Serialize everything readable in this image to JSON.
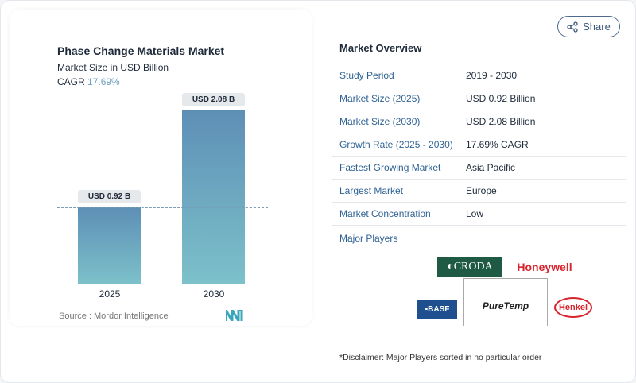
{
  "share_label": "Share",
  "chart": {
    "title": "Phase Change Materials Market",
    "subtitle": "Market Size in USD Billion",
    "cagr_label": "CAGR",
    "cagr_value": "17.69%",
    "source": "Source :  Mordor Intelligence"
  },
  "chart_data": {
    "type": "bar",
    "title": "Phase Change Materials Market",
    "categories": [
      "2025",
      "2030"
    ],
    "values": [
      0.92,
      2.08
    ],
    "data_labels": [
      "USD 0.92 B",
      "USD 2.08 B"
    ],
    "ylabel": "Market Size in USD Billion",
    "colors": [
      "#5e8fb6",
      "#7cc1ca"
    ]
  },
  "overview": {
    "title": "Market Overview",
    "rows": [
      {
        "k": "Study Period",
        "v": "2019 - 2030"
      },
      {
        "k": "Market Size (2025)",
        "v": "USD 0.92 Billion"
      },
      {
        "k": "Market Size (2030)",
        "v": "USD 2.08 Billion"
      },
      {
        "k": "Growth Rate (2025 - 2030)",
        "v": "17.69% CAGR"
      },
      {
        "k": "Fastest Growing Market",
        "v": "Asia Pacific"
      },
      {
        "k": "Largest Market",
        "v": "Europe"
      },
      {
        "k": "Market Concentration",
        "v": "Low"
      }
    ],
    "major_players": "Major Players",
    "logos": [
      "CRODA",
      "Honeywell",
      "BASF",
      "PureTemp",
      "Henkel"
    ],
    "disclaimer": "*Disclaimer: Major Players sorted in no particular order"
  }
}
